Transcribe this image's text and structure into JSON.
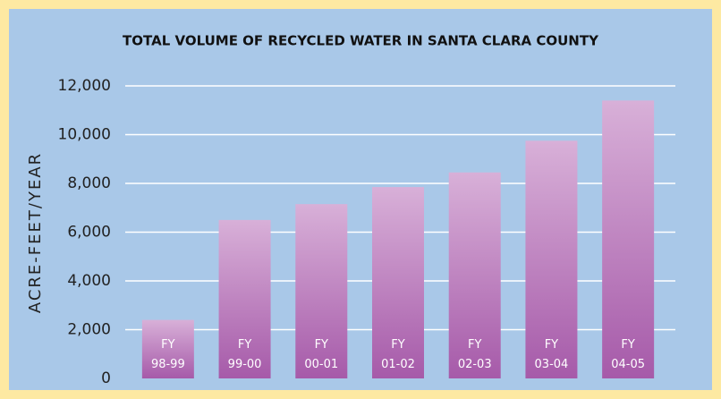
{
  "chart_data": {
    "type": "bar",
    "title": "TOTAL VOLUME OF RECYCLED WATER IN SANTA CLARA COUNTY",
    "y_label": "ACRE-FEET/YEAR",
    "categories": [
      "FY 98-99",
      "FY 99-00",
      "FY 00-01",
      "FY 01-02",
      "FY 02-03",
      "FY 03-04",
      "FY 04-05"
    ],
    "values": [
      2400,
      6500,
      7150,
      7850,
      8450,
      9750,
      11400
    ],
    "color": "#a65aa9",
    "ylim": [
      0,
      12000
    ],
    "yticks": [
      0,
      {
        "value": 2000,
        "label": "2,000"
      },
      {
        "value": 4000,
        "label": "4,000"
      },
      {
        "value": 6000,
        "label": "6,000"
      },
      {
        "value": 8000,
        "label": "8,000"
      },
      {
        "value": 10000,
        "label": "10,000"
      },
      {
        "value": 12000,
        "label": "12,000"
      }
    ],
    "grid": true
  }
}
